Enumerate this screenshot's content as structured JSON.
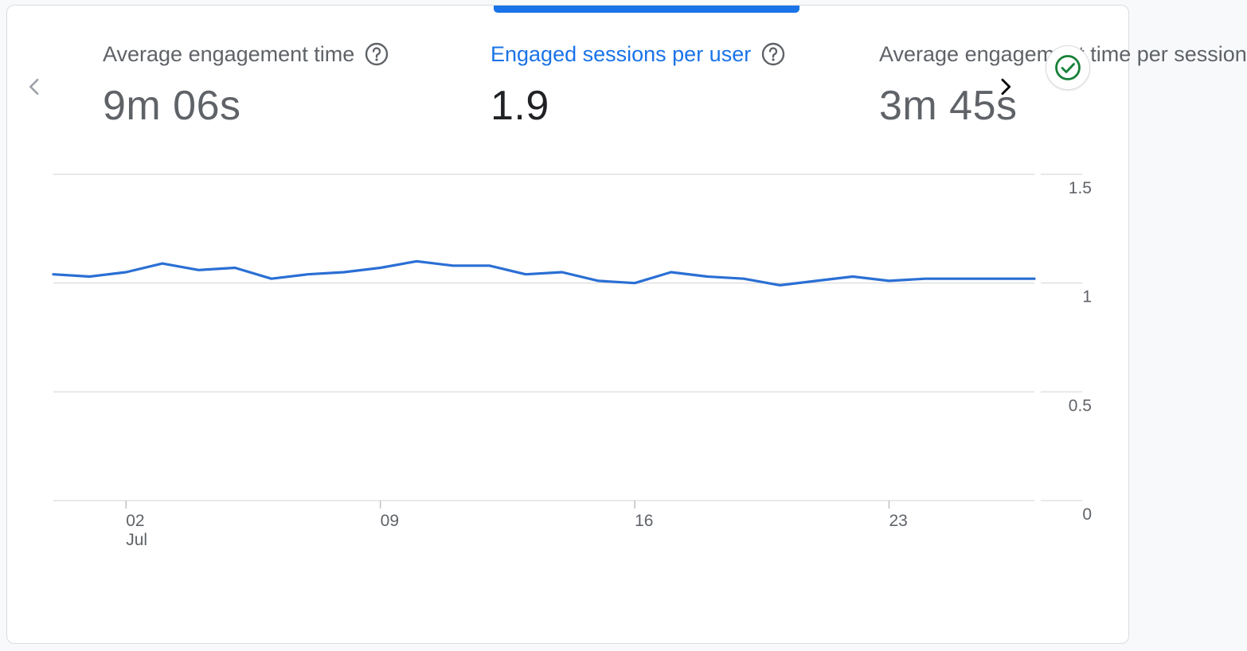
{
  "metrics": [
    {
      "title": "Average engagement time",
      "value": "9m 06s",
      "active": false
    },
    {
      "title": "Engaged sessions per user",
      "value": "1.9",
      "active": true
    },
    {
      "title": "Average engagement time per session",
      "value": "3m 45s",
      "active": false
    }
  ],
  "icons": {
    "prev": "chevron-left-icon",
    "next": "chevron-right-icon",
    "help": "help-circle-icon",
    "status": "check-circle-icon"
  },
  "colors": {
    "accent": "#1a73e8",
    "line": "#2a6fd4",
    "status_green": "#188038",
    "text_muted": "#5f6368",
    "grid": "#e0e0e0"
  },
  "chart_data": {
    "type": "line",
    "x": [
      "Jun 30",
      "Jul 01",
      "Jul 02",
      "Jul 03",
      "Jul 04",
      "Jul 05",
      "Jul 06",
      "Jul 07",
      "Jul 08",
      "Jul 09",
      "Jul 10",
      "Jul 11",
      "Jul 12",
      "Jul 13",
      "Jul 14",
      "Jul 15",
      "Jul 16",
      "Jul 17",
      "Jul 18",
      "Jul 19",
      "Jul 20",
      "Jul 21",
      "Jul 22",
      "Jul 23",
      "Jul 24",
      "Jul 25",
      "Jul 26",
      "Jul 27"
    ],
    "series": [
      {
        "values": [
          1.04,
          1.03,
          1.05,
          1.09,
          1.06,
          1.07,
          1.02,
          1.04,
          1.05,
          1.07,
          1.1,
          1.08,
          1.08,
          1.04,
          1.05,
          1.01,
          1.0,
          1.05,
          1.03,
          1.02,
          0.99,
          1.01,
          1.03,
          1.01,
          1.02,
          1.02,
          1.02,
          1.02
        ]
      }
    ],
    "ylim": [
      0,
      1.5
    ],
    "yticks": [
      "0",
      "0.5",
      "1",
      "1.5"
    ],
    "xticks": [
      {
        "label": "02",
        "sublabel": "Jul",
        "index": 2
      },
      {
        "label": "09",
        "sublabel": "",
        "index": 9
      },
      {
        "label": "16",
        "sublabel": "",
        "index": 16
      },
      {
        "label": "23",
        "sublabel": "",
        "index": 23
      }
    ],
    "grid": true
  }
}
